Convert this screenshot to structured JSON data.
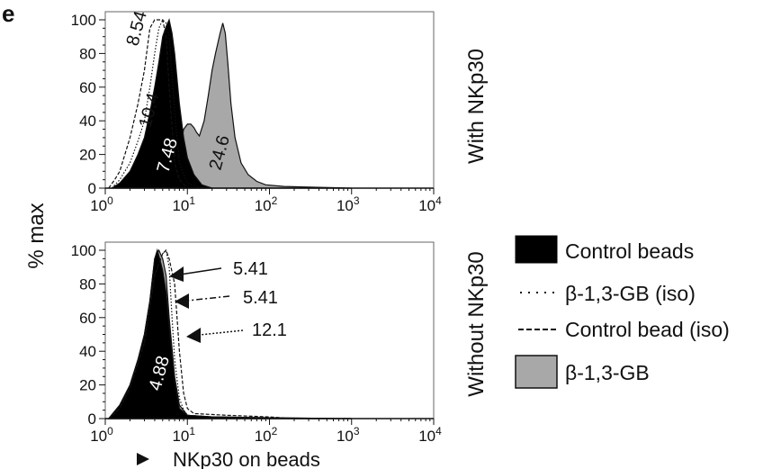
{
  "panel_label": "e",
  "y_label": "% max",
  "x_label": "NKp30 on beads",
  "legend": {
    "placement": "right",
    "items": [
      {
        "label": "Control beads",
        "style": "filled-black"
      },
      {
        "label": "β-1,3-GB (iso)",
        "style": "dotted"
      },
      {
        "label": "Control bead (iso)",
        "style": "dashed"
      },
      {
        "label": "β-1,3-GB",
        "style": "filled-gray"
      }
    ]
  },
  "colors": {
    "control_beads": "#000000",
    "b13gb": "#a8a8a8",
    "line": "#111111"
  },
  "chart_data": [
    {
      "type": "area",
      "title": "With NKp30",
      "x_scale": "log",
      "xlim": [
        1,
        10000
      ],
      "ylim": [
        0,
        100
      ],
      "x_ticks": [
        "10^0",
        "10^1",
        "10^2",
        "10^3",
        "10^4"
      ],
      "y_ticks": [
        0,
        20,
        40,
        60,
        80,
        100
      ],
      "series": [
        {
          "name": "β-1,3-GB",
          "style": "filled-gray",
          "x": [
            7,
            8,
            9,
            10,
            11,
            12,
            13,
            14,
            16,
            18,
            20,
            22,
            25,
            27,
            29,
            31,
            34,
            38,
            45,
            55,
            70,
            90,
            150,
            400,
            1000
          ],
          "y": [
            0,
            20,
            35,
            38,
            38,
            36,
            33,
            31,
            40,
            55,
            70,
            80,
            92,
            98,
            92,
            75,
            50,
            30,
            15,
            8,
            4,
            2,
            1,
            0.5,
            0
          ]
        },
        {
          "name": "Control beads",
          "style": "filled-black",
          "x": [
            1.2,
            1.5,
            2,
            2.5,
            3,
            3.5,
            4,
            4.5,
            5,
            5.5,
            6,
            6.5,
            7,
            8,
            9,
            10,
            12,
            15,
            20
          ],
          "y": [
            0,
            3,
            10,
            20,
            30,
            45,
            60,
            75,
            90,
            96,
            100,
            92,
            80,
            50,
            30,
            18,
            8,
            2,
            0
          ]
        },
        {
          "name": "β-1,3-GB (iso)",
          "style": "dotted",
          "x": [
            1.2,
            1.5,
            2,
            2.5,
            3,
            3.5,
            4,
            4.5,
            5,
            5.5,
            6,
            7,
            8,
            10,
            15
          ],
          "y": [
            0,
            5,
            15,
            28,
            40,
            60,
            80,
            95,
            100,
            98,
            90,
            45,
            15,
            3,
            0
          ]
        },
        {
          "name": "Control bead (iso)",
          "style": "dashed",
          "x": [
            1.1,
            1.3,
            1.5,
            2,
            2.5,
            3,
            3.5,
            4,
            5,
            5.5,
            6,
            7,
            8,
            10
          ],
          "y": [
            0,
            5,
            10,
            30,
            50,
            70,
            95,
            100,
            100,
            90,
            60,
            15,
            5,
            0
          ]
        }
      ],
      "annotations": [
        "8.54",
        "10.4",
        "7.48",
        "24.6"
      ]
    },
    {
      "type": "area",
      "title": "Without NKp30",
      "x_scale": "log",
      "xlim": [
        1,
        10000
      ],
      "ylim": [
        0,
        100
      ],
      "x_ticks": [
        "10^0",
        "10^1",
        "10^2",
        "10^3",
        "10^4"
      ],
      "y_ticks": [
        0,
        20,
        40,
        60,
        80,
        100
      ],
      "series": [
        {
          "name": "β-1,3-GB",
          "style": "filled-gray",
          "x": [
            1.1,
            1.5,
            2,
            2.5,
            3,
            3.5,
            4,
            4.5,
            5,
            5.5,
            6,
            7,
            8,
            10,
            20,
            100,
            1000
          ],
          "y": [
            0,
            8,
            20,
            35,
            50,
            70,
            95,
            100,
            95,
            85,
            60,
            25,
            8,
            2,
            1,
            0.5,
            0
          ]
        },
        {
          "name": "Control beads",
          "style": "filled-black",
          "x": [
            1.1,
            1.5,
            2,
            2.5,
            3,
            3.5,
            4,
            4.3,
            4.6,
            5,
            5.5,
            6,
            7,
            8,
            10,
            20,
            100,
            1000
          ],
          "y": [
            0,
            8,
            20,
            35,
            50,
            70,
            95,
            100,
            95,
            88,
            75,
            55,
            22,
            6,
            2,
            1,
            0.5,
            0
          ]
        },
        {
          "name": "β-1,3-GB (iso)",
          "style": "dotted",
          "x": [
            1.1,
            1.5,
            2,
            3,
            4,
            5,
            5.5,
            6,
            6.5,
            7,
            8,
            9,
            10,
            20,
            100
          ],
          "y": [
            0,
            6,
            18,
            45,
            85,
            98,
            100,
            90,
            60,
            35,
            12,
            5,
            2,
            1,
            0
          ]
        },
        {
          "name": "Control bead (iso)",
          "style": "dashed",
          "x": [
            1.1,
            1.5,
            2,
            3,
            4,
            5,
            5.5,
            6,
            7,
            8,
            9,
            10,
            12,
            30,
            100,
            200
          ],
          "y": [
            0,
            6,
            18,
            45,
            85,
            98,
            100,
            95,
            80,
            40,
            15,
            6,
            3,
            2,
            1,
            0
          ]
        }
      ],
      "annotations": [
        "4.88",
        "5.41",
        "5.41",
        "12.1"
      ]
    }
  ]
}
